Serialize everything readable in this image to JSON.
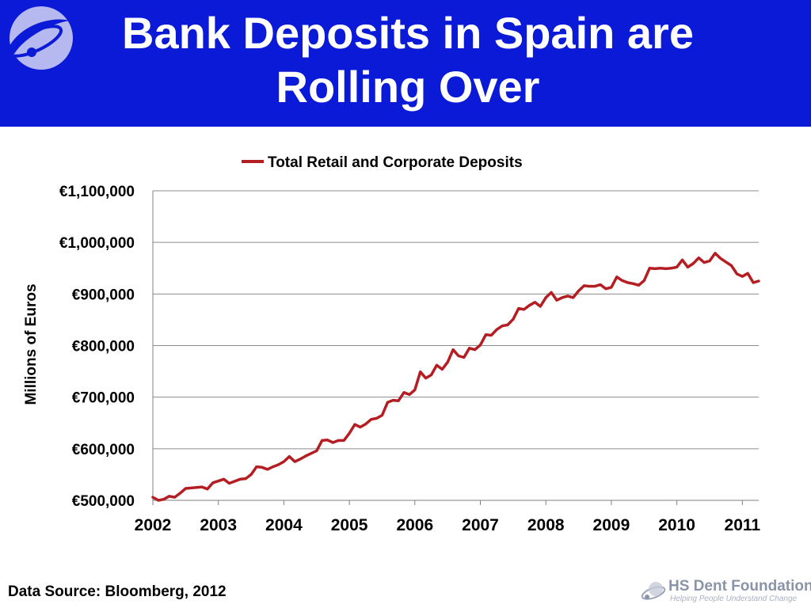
{
  "slide": {
    "title_lines": [
      "Bank Deposits in Spain are",
      "Rolling Over"
    ],
    "source": "Data Source: Bloomberg, 2012",
    "footer": {
      "name": "HS Dent Foundation",
      "tagline": "Helping People Understand Change"
    },
    "colors": {
      "header_bg": "#0a1ad6",
      "line": "#b41e23"
    },
    "icons": {
      "header_logo": "orbit-logo-icon",
      "footer_logo": "orbit-logo-icon"
    }
  },
  "chart_data": {
    "type": "line",
    "title": "",
    "ylabel": "Millions of Euros",
    "xlabel": "",
    "ylim": [
      500000,
      1100000
    ],
    "xlim": [
      "2002-01",
      "2011-03"
    ],
    "y_ticks": [
      "€500,000",
      "€600,000",
      "€700,000",
      "€800,000",
      "€900,000",
      "€1,000,000",
      "€1,100,000"
    ],
    "x_ticks": [
      "2002",
      "2003",
      "2004",
      "2005",
      "2006",
      "2007",
      "2008",
      "2009",
      "2010",
      "2011"
    ],
    "grid": "horizontal",
    "legend": "top-center",
    "series": [
      {
        "name": "Total Retail and Corporate Deposits",
        "color": "#b41e23",
        "points": [
          [
            "2002-01",
            506000
          ],
          [
            "2002-02",
            500000
          ],
          [
            "2002-03",
            502000
          ],
          [
            "2002-04",
            508000
          ],
          [
            "2002-05",
            506000
          ],
          [
            "2002-06",
            514000
          ],
          [
            "2002-07",
            523000
          ],
          [
            "2002-08",
            524000
          ],
          [
            "2002-09",
            525000
          ],
          [
            "2002-10",
            526000
          ],
          [
            "2002-11",
            522000
          ],
          [
            "2002-12",
            534000
          ],
          [
            "2003-02",
            541000
          ],
          [
            "2003-03",
            533000
          ],
          [
            "2003-04",
            537000
          ],
          [
            "2003-05",
            541000
          ],
          [
            "2003-06",
            542000
          ],
          [
            "2003-07",
            550000
          ],
          [
            "2003-08",
            565000
          ],
          [
            "2003-09",
            564000
          ],
          [
            "2003-10",
            560000
          ],
          [
            "2003-11",
            565000
          ],
          [
            "2003-12",
            569000
          ],
          [
            "2004-01",
            575000
          ],
          [
            "2004-02",
            585000
          ],
          [
            "2004-03",
            575000
          ],
          [
            "2004-04",
            580000
          ],
          [
            "2004-05",
            586000
          ],
          [
            "2004-06",
            591000
          ],
          [
            "2004-07",
            596000
          ],
          [
            "2004-08",
            616000
          ],
          [
            "2004-09",
            617000
          ],
          [
            "2004-10",
            612000
          ],
          [
            "2004-11",
            616000
          ],
          [
            "2004-12",
            616000
          ],
          [
            "2005-01",
            630000
          ],
          [
            "2005-02",
            647000
          ],
          [
            "2005-03",
            642000
          ],
          [
            "2005-04",
            648000
          ],
          [
            "2005-05",
            657000
          ],
          [
            "2005-06",
            659000
          ],
          [
            "2005-07",
            665000
          ],
          [
            "2005-08",
            690000
          ],
          [
            "2005-09",
            694000
          ],
          [
            "2005-10",
            693000
          ],
          [
            "2005-11",
            709000
          ],
          [
            "2005-12",
            705000
          ],
          [
            "2006-01",
            714000
          ],
          [
            "2006-02",
            749000
          ],
          [
            "2006-03",
            737000
          ],
          [
            "2006-04",
            743000
          ],
          [
            "2006-05",
            762000
          ],
          [
            "2006-06",
            754000
          ],
          [
            "2006-07",
            768000
          ],
          [
            "2006-08",
            792000
          ],
          [
            "2006-09",
            780000
          ],
          [
            "2006-10",
            777000
          ],
          [
            "2006-11",
            795000
          ],
          [
            "2006-12",
            792000
          ],
          [
            "2007-01",
            801000
          ],
          [
            "2007-02",
            821000
          ],
          [
            "2007-03",
            820000
          ],
          [
            "2007-04",
            831000
          ],
          [
            "2007-05",
            838000
          ],
          [
            "2007-06",
            840000
          ],
          [
            "2007-07",
            851000
          ],
          [
            "2007-08",
            872000
          ],
          [
            "2007-09",
            870000
          ],
          [
            "2007-10",
            878000
          ],
          [
            "2007-11",
            884000
          ],
          [
            "2007-12",
            876000
          ],
          [
            "2008-01",
            893000
          ],
          [
            "2008-02",
            903000
          ],
          [
            "2008-03",
            888000
          ],
          [
            "2008-04",
            893000
          ],
          [
            "2008-05",
            896000
          ],
          [
            "2008-06",
            893000
          ],
          [
            "2008-07",
            906000
          ],
          [
            "2008-08",
            916000
          ],
          [
            "2008-09",
            915000
          ],
          [
            "2008-10",
            915000
          ],
          [
            "2008-11",
            918000
          ],
          [
            "2008-12",
            910000
          ],
          [
            "2009-01",
            913000
          ],
          [
            "2009-02",
            933000
          ],
          [
            "2009-03",
            926000
          ],
          [
            "2009-04",
            922000
          ],
          [
            "2009-05",
            920000
          ],
          [
            "2009-06",
            917000
          ],
          [
            "2009-07",
            926000
          ],
          [
            "2009-08",
            950000
          ],
          [
            "2009-09",
            949000
          ],
          [
            "2009-10",
            950000
          ],
          [
            "2009-11",
            949000
          ],
          [
            "2009-12",
            950000
          ],
          [
            "2010-01",
            952000
          ],
          [
            "2010-02",
            966000
          ],
          [
            "2010-03",
            952000
          ],
          [
            "2010-04",
            959000
          ],
          [
            "2010-05",
            970000
          ],
          [
            "2010-06",
            961000
          ],
          [
            "2010-07",
            964000
          ],
          [
            "2010-08",
            979000
          ],
          [
            "2010-09",
            969000
          ],
          [
            "2010-10",
            962000
          ],
          [
            "2010-11",
            955000
          ],
          [
            "2010-12",
            939000
          ],
          [
            "2011-01",
            934000
          ],
          [
            "2011-02",
            940000
          ],
          [
            "2011-03",
            922000
          ],
          [
            "2011-04",
            925000
          ]
        ]
      }
    ]
  }
}
